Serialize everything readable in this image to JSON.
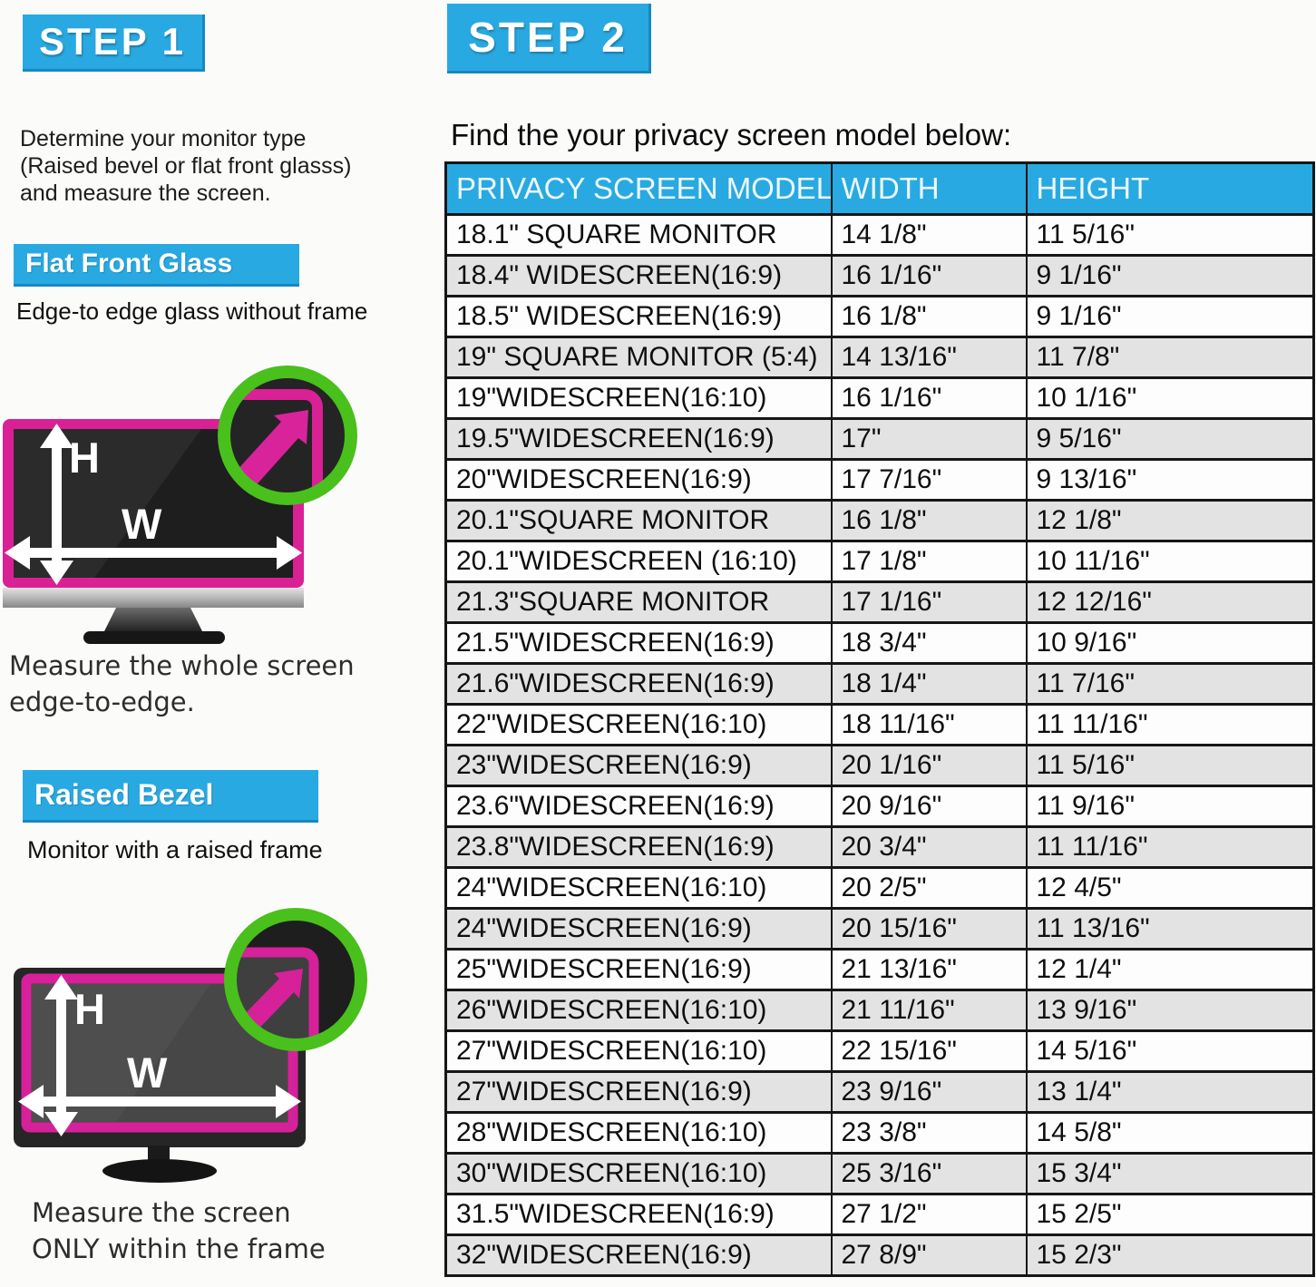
{
  "colors": {
    "accent_blue": "#29a9e1",
    "accent_pink": "#d8239b",
    "accent_green": "#49c01c",
    "table_row_alt": "#e3e3e3",
    "table_border": "#161616"
  },
  "step1": {
    "badge": "STEP 1",
    "intro_lines": [
      "Determine your monitor type",
      "(Raised bevel or flat front glasss)",
      "and measure the screen."
    ],
    "measure_labels": {
      "height": "H",
      "width": "W"
    },
    "flat": {
      "label": "Flat Front Glass",
      "description": "Edge-to edge glass without frame",
      "caption_lines": [
        "Measure the whole screen",
        "edge-to-edge."
      ]
    },
    "raised": {
      "label": "Raised Bezel",
      "description": "Monitor with a raised frame",
      "caption_lines": [
        "Measure the screen",
        "ONLY within the frame"
      ]
    }
  },
  "step2": {
    "badge": "STEP 2",
    "heading": "Find the your privacy screen model below:",
    "table": {
      "columns": [
        "PRIVACY SCREEN MODEL",
        "WIDTH",
        "HEIGHT"
      ],
      "rows": [
        [
          "18.1\" SQUARE MONITOR",
          "14 1/8\"",
          "11 5/16\""
        ],
        [
          "18.4\" WIDESCREEN(16:9)",
          "16 1/16\"",
          "9 1/16\""
        ],
        [
          "18.5\" WIDESCREEN(16:9)",
          "16 1/8\"",
          "9 1/16\""
        ],
        [
          "19\" SQUARE MONITOR (5:4)",
          "14 13/16\"",
          "11 7/8\""
        ],
        [
          "19\"WIDESCREEN(16:10)",
          "16 1/16\"",
          "10 1/16\""
        ],
        [
          "19.5\"WIDESCREEN(16:9)",
          "17\"",
          "9 5/16\""
        ],
        [
          "20\"WIDESCREEN(16:9)",
          "17 7/16\"",
          "9 13/16\""
        ],
        [
          "20.1\"SQUARE MONITOR",
          "16 1/8\"",
          "12 1/8\""
        ],
        [
          "20.1\"WIDESCREEN (16:10)",
          "17 1/8\"",
          "10 11/16\""
        ],
        [
          "21.3\"SQUARE MONITOR",
          "17 1/16\"",
          "12 12/16\""
        ],
        [
          "21.5\"WIDESCREEN(16:9)",
          "18 3/4\"",
          "10 9/16\""
        ],
        [
          "21.6\"WIDESCREEN(16:9)",
          "18 1/4\"",
          "11 7/16\""
        ],
        [
          "22\"WIDESCREEN(16:10)",
          "18 11/16\"",
          "11 11/16\""
        ],
        [
          "23\"WIDESCREEN(16:9)",
          "20 1/16\"",
          "11 5/16\""
        ],
        [
          "23.6\"WIDESCREEN(16:9)",
          "20 9/16\"",
          "11 9/16\""
        ],
        [
          "23.8\"WIDESCREEN(16:9)",
          "20 3/4\"",
          "11 11/16\""
        ],
        [
          "24\"WIDESCREEN(16:10)",
          "20 2/5\"",
          "12 4/5\""
        ],
        [
          "24\"WIDESCREEN(16:9)",
          "20 15/16\"",
          "11 13/16\""
        ],
        [
          "25\"WIDESCREEN(16:9)",
          "21 13/16\"",
          "12 1/4\""
        ],
        [
          "26\"WIDESCREEN(16:10)",
          "21 11/16\"",
          "13 9/16\""
        ],
        [
          "27\"WIDESCREEN(16:10)",
          "22 15/16\"",
          "14 5/16\""
        ],
        [
          "27\"WIDESCREEN(16:9)",
          "23 9/16\"",
          "13 1/4\""
        ],
        [
          "28\"WIDESCREEN(16:10)",
          "23 3/8\"",
          "14 5/8\""
        ],
        [
          "30\"WIDESCREEN(16:10)",
          "25 3/16\"",
          "15 3/4\""
        ],
        [
          "31.5\"WIDESCREEN(16:9)",
          "27 1/2\"",
          "15 2/5\""
        ],
        [
          "32\"WIDESCREEN(16:9)",
          "27 8/9\"",
          "15 2/3\""
        ]
      ]
    }
  }
}
